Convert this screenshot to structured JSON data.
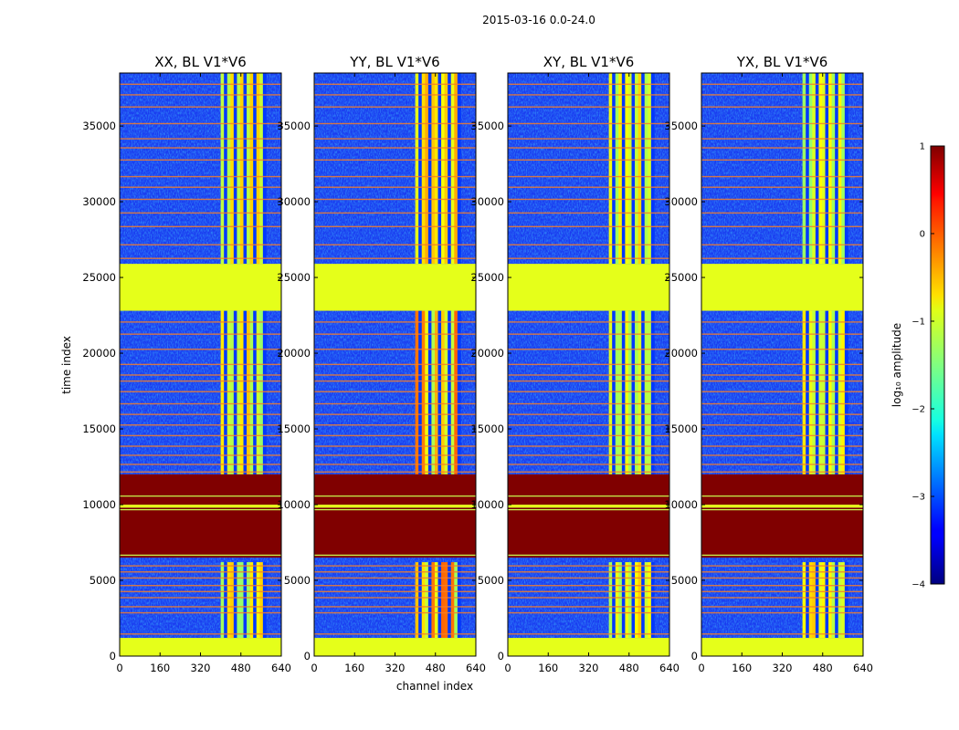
{
  "chart_data": {
    "type": "heatmap",
    "suptitle": "2015-03-16 0.0-24.0",
    "xlabel": "channel index",
    "ylabel": "time index",
    "xlim": [
      0,
      640
    ],
    "ylim": [
      0,
      38500
    ],
    "xticks": [
      "0",
      "160",
      "320",
      "480",
      "640"
    ],
    "yticks": [
      "0",
      "5000",
      "10000",
      "15000",
      "20000",
      "25000",
      "30000",
      "35000"
    ],
    "panels": [
      {
        "title": "XX, BL V1*V6"
      },
      {
        "title": "YY, BL V1*V6"
      },
      {
        "title": "XY, BL V1*V6"
      },
      {
        "title": "YX, BL V1*V6"
      }
    ],
    "colorbar": {
      "label": "log₁₀ amplitude",
      "range": [
        -4,
        1
      ],
      "ticks": [
        "1",
        "0",
        "−1",
        "−2",
        "−3",
        "−4"
      ],
      "colormap": "jet"
    },
    "bands_log_amplitude": [
      {
        "from": 0,
        "to": 1200,
        "value": -1.0,
        "note": "flagged (green)"
      },
      {
        "from": 1200,
        "to": 6200,
        "value": -3.2,
        "note": "mostly low noise"
      },
      {
        "from": 6500,
        "to": 9800,
        "value": 1.0,
        "note": "saturated (dark red)"
      },
      {
        "from": 9800,
        "to": 10000,
        "value": -1.0
      },
      {
        "from": 10000,
        "to": 12000,
        "value": 1.0,
        "note": "saturated (dark red)"
      },
      {
        "from": 12000,
        "to": 22800,
        "value": -3.2
      },
      {
        "from": 22800,
        "to": 25900,
        "value": -1.0,
        "note": "flagged (green)"
      },
      {
        "from": 25900,
        "to": 38500,
        "value": -3.2
      }
    ],
    "bright_channels": [
      [
        400,
        580
      ]
    ]
  },
  "colors": {
    "background": "#ffffff",
    "noise_blue": "#1a3cf0",
    "flag_green": "#98fe5a",
    "saturated_red": "#7f0000",
    "line_orange": "#f57c2a"
  }
}
